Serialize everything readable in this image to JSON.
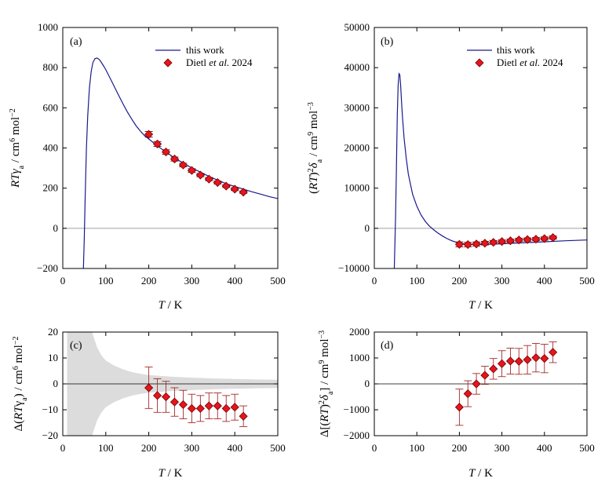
{
  "colors": {
    "curve": "#1a1a8c",
    "marker_fill": "#e8141c",
    "marker_edge": "#6e0000",
    "errorbar": "#a52a2a",
    "band": "#dcdcdc",
    "zero_line_top": "#a0a0a0",
    "zero_line_bottom": "#000000"
  },
  "chart_data": [
    {
      "id": "a",
      "type": "line",
      "panel_label": "(a)",
      "xlabel": "T / K",
      "ylabel": "RTγa / cm6 mol−2",
      "ylabel_parts": {
        "main": "RTγ",
        "sub": "a",
        "unit_pre": " / cm",
        "sup1": "6",
        "unit_mid": " mol",
        "sup2": "−2"
      },
      "xlim": [
        0,
        500
      ],
      "ylim": [
        -200,
        1000
      ],
      "xticks": [
        0,
        100,
        200,
        300,
        400,
        500
      ],
      "yticks": [
        -200,
        0,
        200,
        400,
        600,
        800,
        1000
      ],
      "ytick_labels": [
        "−200",
        "0",
        "200",
        "400",
        "600",
        "800",
        "1000"
      ],
      "zero_line": true,
      "legend": {
        "position": "top-right",
        "line_label": "this work",
        "marker_label_pre": "Dietl ",
        "marker_label_italic": "et al.",
        "marker_label_post": " 2024"
      },
      "series": [
        {
          "name": "this work",
          "kind": "line",
          "x": [
            48,
            50,
            52,
            55,
            58,
            62,
            66,
            70,
            75,
            80,
            85,
            90,
            95,
            100,
            110,
            120,
            130,
            140,
            150,
            160,
            170,
            180,
            190,
            200,
            220,
            240,
            260,
            280,
            300,
            320,
            340,
            360,
            380,
            400,
            420,
            440,
            460,
            480,
            500
          ],
          "y": [
            -200,
            -50,
            150,
            400,
            560,
            700,
            780,
            825,
            845,
            848,
            840,
            825,
            808,
            790,
            748,
            705,
            662,
            620,
            580,
            545,
            512,
            485,
            462,
            445,
            410,
            380,
            350,
            325,
            300,
            280,
            258,
            240,
            222,
            208,
            195,
            182,
            170,
            158,
            148
          ]
        },
        {
          "name": "Dietl et al. 2024",
          "kind": "scatter",
          "x": [
            200,
            220,
            240,
            260,
            280,
            300,
            320,
            340,
            360,
            380,
            400,
            420
          ],
          "y": [
            468,
            420,
            380,
            345,
            315,
            288,
            265,
            245,
            228,
            210,
            195,
            180
          ],
          "yerr": [
            14,
            12,
            11,
            10,
            9,
            9,
            8,
            8,
            7,
            7,
            7,
            6
          ]
        }
      ]
    },
    {
      "id": "b",
      "type": "line",
      "panel_label": "(b)",
      "xlabel": "T / K",
      "ylabel": "(RT)2δa / cm9 mol−3",
      "ylabel_parts": {
        "pre": "(RT)",
        "sup0": "2",
        "main": "δ",
        "sub": "a",
        "unit_pre": " / cm",
        "sup1": "9",
        "unit_mid": " mol",
        "sup2": "−3"
      },
      "xlim": [
        0,
        500
      ],
      "ylim": [
        -10000,
        50000
      ],
      "xticks": [
        0,
        100,
        200,
        300,
        400,
        500
      ],
      "yticks": [
        -10000,
        0,
        10000,
        20000,
        30000,
        40000,
        50000
      ],
      "ytick_labels": [
        "−10000",
        "0",
        "10000",
        "20000",
        "30000",
        "40000",
        "50000"
      ],
      "zero_line": true,
      "legend": {
        "position": "top-right",
        "line_label": "this work",
        "marker_label_pre": "Dietl ",
        "marker_label_italic": "et al.",
        "marker_label_post": " 2024"
      },
      "series": [
        {
          "name": "this work",
          "kind": "line",
          "x": [
            47,
            50,
            52,
            54,
            56,
            58,
            60,
            62,
            64,
            66,
            70,
            75,
            80,
            90,
            100,
            110,
            120,
            130,
            140,
            150,
            160,
            170,
            180,
            190,
            200,
            220,
            240,
            260,
            280,
            300,
            350,
            400,
            450,
            500
          ],
          "y": [
            -10000,
            3000,
            15000,
            28000,
            35500,
            38500,
            38200,
            35500,
            31500,
            28000,
            22500,
            17500,
            13500,
            8500,
            5500,
            3300,
            1700,
            500,
            -400,
            -1200,
            -1900,
            -2500,
            -3000,
            -3400,
            -3700,
            -4000,
            -4050,
            -4000,
            -3950,
            -3850,
            -3600,
            -3350,
            -3100,
            -2900
          ]
        },
        {
          "name": "Dietl et al. 2024",
          "kind": "scatter",
          "x": [
            200,
            220,
            240,
            260,
            280,
            300,
            320,
            340,
            360,
            380,
            400,
            420
          ],
          "y": [
            -4000,
            -4050,
            -3900,
            -3700,
            -3500,
            -3300,
            -3100,
            -2900,
            -2800,
            -2700,
            -2550,
            -2300
          ],
          "yerr": [
            600,
            550,
            500,
            450,
            450,
            400,
            400,
            400,
            400,
            400,
            400,
            400
          ]
        }
      ]
    },
    {
      "id": "c",
      "type": "scatter",
      "panel_label": "(c)",
      "xlabel": "T / K",
      "ylabel": "Δ(RTγa) / cm6 mol−2",
      "ylabel_parts": {
        "pre": "Δ(RTγ",
        "sub": "a",
        "post": ")",
        "unit_pre": " / cm",
        "sup1": "6",
        "unit_mid": " mol",
        "sup2": "−2"
      },
      "xlim": [
        0,
        500
      ],
      "ylim": [
        -20,
        20
      ],
      "xticks": [
        0,
        100,
        200,
        300,
        400,
        500
      ],
      "yticks": [
        -20,
        -10,
        0,
        10,
        20
      ],
      "ytick_labels": [
        "−20",
        "−10",
        "0",
        "10",
        "20"
      ],
      "zero_line": true,
      "uncertainty_band": {
        "x": [
          10,
          20,
          30,
          40,
          50,
          60,
          70,
          80,
          90,
          100,
          120,
          140,
          160,
          180,
          200,
          250,
          300,
          350,
          400,
          450,
          500
        ],
        "half_width": [
          40,
          40,
          40,
          40,
          35,
          26,
          19,
          14,
          11,
          9,
          7,
          5.6,
          4.6,
          3.9,
          3.4,
          2.8,
          2.4,
          2.1,
          1.9,
          1.7,
          1.6
        ]
      },
      "series": [
        {
          "name": "Dietl et al. 2024",
          "kind": "scatter",
          "x": [
            200,
            220,
            240,
            260,
            280,
            300,
            320,
            340,
            360,
            380,
            400,
            420
          ],
          "y": [
            -1.5,
            -4.5,
            -5,
            -7,
            -8,
            -9.5,
            -9.5,
            -8.5,
            -8.5,
            -9.5,
            -9,
            -12.5
          ],
          "yerr": [
            8,
            6.5,
            6,
            5.5,
            5.5,
            5.5,
            5,
            5,
            5,
            5,
            5,
            4
          ]
        }
      ]
    },
    {
      "id": "d",
      "type": "scatter",
      "panel_label": "(d)",
      "xlabel": "T / K",
      "ylabel": "Δ[(RT)2δa] / cm9 mol−3",
      "ylabel_parts": {
        "pre": "Δ[(RT)",
        "sup0": "2",
        "main": "δ",
        "sub": "a",
        "post": "]",
        "unit_pre": " / cm",
        "sup1": "9",
        "unit_mid": " mol",
        "sup2": "−3"
      },
      "xlim": [
        0,
        500
      ],
      "ylim": [
        -2000,
        2000
      ],
      "xticks": [
        0,
        100,
        200,
        300,
        400,
        500
      ],
      "yticks": [
        -2000,
        -1000,
        0,
        1000,
        2000
      ],
      "ytick_labels": [
        "−2000",
        "−1000",
        "0",
        "1000",
        "2000"
      ],
      "zero_line": true,
      "series": [
        {
          "name": "Dietl et al. 2024",
          "kind": "scatter",
          "x": [
            200,
            220,
            240,
            260,
            280,
            300,
            320,
            340,
            360,
            380,
            400,
            420
          ],
          "y": [
            -900,
            -380,
            0,
            330,
            580,
            780,
            880,
            870,
            930,
            1010,
            980,
            1220
          ],
          "yerr": [
            700,
            500,
            400,
            350,
            400,
            500,
            500,
            500,
            550,
            550,
            550,
            400
          ]
        }
      ]
    }
  ]
}
